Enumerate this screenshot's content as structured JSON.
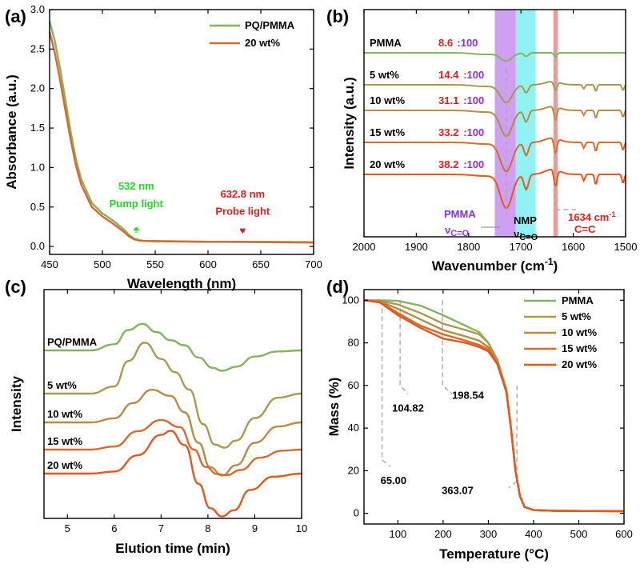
{
  "colors": {
    "green": "#86b360",
    "olive": "#a89a4e",
    "tan": "#b88b45",
    "orange": "#d96a2a",
    "deeporange": "#e8561c",
    "red": "#e02020",
    "purple": "#8a30e0",
    "bandPurple": "#c68ef0",
    "bandCyan": "#7ef0f0",
    "bandRed": "#f08a8a",
    "bright_green": "#22dd22"
  },
  "chart_data": [
    {
      "panel": "(a)",
      "type": "line",
      "xlabel": "Wavelength (nm)",
      "ylabel": "Absorbance (a.u.)",
      "xlim": [
        450,
        700
      ],
      "ylim": [
        -0.1,
        3.0
      ],
      "xticks": [
        450,
        500,
        550,
        600,
        650,
        700
      ],
      "yticks": [
        0.0,
        0.5,
        1.0,
        1.5,
        2.0,
        2.5,
        3.0
      ],
      "ytick_labels": [
        "0.0",
        "0.5",
        "1.0",
        "1.5",
        "2.0",
        "2.5",
        "3.0"
      ],
      "legend_position": "top-right",
      "series": [
        {
          "name": "PQ/PMMA",
          "color": "green",
          "x": [
            450,
            455,
            460,
            465,
            470,
            475,
            480,
            490,
            500,
            510,
            520,
            525,
            530,
            535,
            540,
            550,
            600,
            650,
            700
          ],
          "y": [
            2.85,
            2.6,
            2.25,
            1.85,
            1.45,
            1.1,
            0.85,
            0.55,
            0.42,
            0.33,
            0.22,
            0.15,
            0.1,
            0.08,
            0.07,
            0.07,
            0.06,
            0.06,
            0.055
          ]
        },
        {
          "name": "20 wt%",
          "color": "orange",
          "x": [
            450,
            455,
            460,
            465,
            470,
            475,
            480,
            490,
            500,
            510,
            520,
            525,
            530,
            535,
            540,
            550,
            600,
            650,
            700
          ],
          "y": [
            2.72,
            2.45,
            2.1,
            1.72,
            1.35,
            1.02,
            0.78,
            0.5,
            0.38,
            0.29,
            0.19,
            0.13,
            0.09,
            0.075,
            0.07,
            0.065,
            0.06,
            0.055,
            0.05
          ]
        }
      ],
      "annotations": [
        {
          "text": "532 nm",
          "color": "bright_green",
          "x": 532,
          "y": 0.72
        },
        {
          "text": "Pump light",
          "color": "bright_green",
          "x": 532,
          "y": 0.5
        },
        {
          "text": "♠",
          "color": "bright_green",
          "x": 532,
          "y": 0.18
        },
        {
          "text": "632.8 nm",
          "color": "red",
          "x": 632.8,
          "y": 0.62
        },
        {
          "text": "Probe light",
          "color": "red",
          "x": 632.8,
          "y": 0.4
        },
        {
          "text": "♥",
          "color": "red",
          "x": 632.8,
          "y": 0.16
        }
      ]
    },
    {
      "panel": "(b)",
      "type": "line",
      "xlabel": "Wavenumber (cm⁻¹)",
      "ylabel": "Intensity (a.u.)",
      "xlim": [
        2000,
        1500
      ],
      "xticks": [
        2000,
        1900,
        1800,
        1700,
        1600,
        1500
      ],
      "bands": [
        {
          "from": 1750,
          "to": 1710,
          "color": "bandPurple"
        },
        {
          "from": 1710,
          "to": 1672,
          "color": "bandCyan"
        },
        {
          "from": 1638,
          "to": 1630,
          "color": "bandRed"
        }
      ],
      "series": [
        {
          "name": "PMMA",
          "ratio_red": "8.6",
          "ratio_purple": ":100",
          "color": "green"
        },
        {
          "name": "5 wt%",
          "ratio_red": "14.4",
          "ratio_purple": ":100",
          "color": "olive"
        },
        {
          "name": "10 wt%",
          "ratio_red": "31.1",
          "ratio_purple": ":100",
          "color": "tan"
        },
        {
          "name": "15 wt%",
          "ratio_red": "33.2",
          "ratio_purple": ":100",
          "color": "orange"
        },
        {
          "name": "20 wt%",
          "ratio_red": "38.2",
          "ratio_purple": ":100",
          "color": "deeporange"
        }
      ],
      "annotations": {
        "pmma": "PMMA",
        "nu": "ν",
        "pmma_sub": "C=O",
        "nmp": "NMP",
        "nmp_sub": "C=O",
        "cc_value": "1634 cm",
        "cc_exp": "-1",
        "cc_label": "C=C"
      }
    },
    {
      "panel": "(c)",
      "type": "line",
      "xlabel": "Elution time (min)",
      "ylabel": "Intensity",
      "xlim": [
        4.5,
        10
      ],
      "xticks": [
        5,
        6,
        7,
        8,
        9,
        10
      ],
      "series": [
        {
          "name": "PQ/PMMA",
          "color": "green",
          "offset": 4.4,
          "x": [
            4.5,
            5.5,
            6.0,
            6.3,
            6.6,
            6.9,
            7.2,
            7.5,
            7.8,
            8.1,
            8.3,
            8.6,
            9.0,
            9.5,
            10.0
          ],
          "y": [
            0.0,
            0.0,
            0.3,
            1.0,
            1.3,
            0.9,
            0.5,
            0.25,
            -0.35,
            -0.85,
            -1.0,
            -0.8,
            -0.3,
            -0.05,
            0.0
          ]
        },
        {
          "name": "5 wt%",
          "color": "olive",
          "offset": 3.0,
          "x": [
            4.5,
            5.5,
            6.0,
            6.3,
            6.65,
            7.0,
            7.3,
            7.6,
            7.9,
            8.15,
            8.35,
            8.6,
            9.0,
            9.5,
            10.0
          ],
          "y": [
            0.0,
            0.0,
            0.35,
            1.6,
            2.5,
            1.7,
            1.05,
            0.2,
            -1.5,
            -2.5,
            -2.65,
            -2.3,
            -1.2,
            -0.2,
            0.0
          ]
        },
        {
          "name": "10 wt%",
          "color": "tan",
          "offset": 1.95,
          "x": [
            4.5,
            5.5,
            6.0,
            6.4,
            6.8,
            7.2,
            7.5,
            7.8,
            8.05,
            8.3,
            8.6,
            9.0,
            9.5,
            10.0
          ],
          "y": [
            0.0,
            0.0,
            0.2,
            0.95,
            1.6,
            1.3,
            0.5,
            -1.0,
            -2.2,
            -2.6,
            -2.1,
            -1.0,
            -0.2,
            0.0
          ]
        },
        {
          "name": "15 wt%",
          "color": "orange",
          "offset": 1.15,
          "x": [
            4.5,
            5.5,
            6.0,
            6.5,
            7.0,
            7.4,
            7.7,
            7.95,
            8.2,
            8.4,
            8.7,
            9.1,
            9.6,
            10.0
          ],
          "y": [
            0.0,
            0.0,
            0.15,
            0.9,
            1.45,
            1.1,
            0.0,
            -0.85,
            -1.2,
            -1.25,
            -1.0,
            -0.4,
            -0.05,
            0.0
          ]
        },
        {
          "name": "20 wt%",
          "color": "deeporange",
          "offset": 0.3,
          "x": [
            4.5,
            5.5,
            6.0,
            6.5,
            7.0,
            7.2,
            7.5,
            7.8,
            8.05,
            8.3,
            8.55,
            8.9,
            9.4,
            10.0
          ],
          "y": [
            0.0,
            0.0,
            0.1,
            0.9,
            1.9,
            2.1,
            1.4,
            -0.5,
            -1.7,
            -2.1,
            -1.8,
            -0.8,
            -0.15,
            0.0
          ]
        }
      ]
    },
    {
      "panel": "(d)",
      "type": "line",
      "xlabel": "Temperature (°C)",
      "ylabel": "Mass (%)",
      "xlim": [
        25,
        600
      ],
      "ylim": [
        -5,
        105
      ],
      "xticks": [
        100,
        200,
        300,
        400,
        500,
        600
      ],
      "yticks": [
        0,
        20,
        40,
        60,
        80,
        100
      ],
      "legend_position": "top-right",
      "series": [
        {
          "name": "PMMA",
          "color": "green",
          "x": [
            25,
            60,
            100,
            150,
            200,
            250,
            280,
            300,
            320,
            340,
            350,
            360,
            370,
            380,
            400,
            450,
            600
          ],
          "y": [
            100,
            100,
            99.7,
            97.5,
            93,
            88,
            85,
            80,
            72,
            58,
            40,
            20,
            8,
            3,
            1.5,
            1.2,
            1.0
          ]
        },
        {
          "name": "5 wt%",
          "color": "olive",
          "x": [
            25,
            60,
            100,
            150,
            200,
            250,
            280,
            300,
            320,
            340,
            350,
            360,
            370,
            380,
            400,
            450,
            600
          ],
          "y": [
            100,
            99.8,
            98,
            94,
            89,
            86,
            84,
            80,
            72,
            58,
            40,
            20,
            8,
            3,
            1.5,
            1.2,
            1.0
          ]
        },
        {
          "name": "10 wt%",
          "color": "tan",
          "x": [
            25,
            60,
            100,
            150,
            200,
            250,
            280,
            300,
            320,
            340,
            350,
            360,
            370,
            380,
            400,
            450,
            600
          ],
          "y": [
            100,
            99.5,
            96,
            91,
            86,
            83,
            81,
            78,
            71,
            57,
            40,
            20,
            8,
            3,
            1.5,
            1.2,
            1.0
          ]
        },
        {
          "name": "15 wt%",
          "color": "orange",
          "x": [
            25,
            60,
            100,
            150,
            200,
            250,
            280,
            300,
            320,
            340,
            350,
            360,
            370,
            380,
            400,
            450,
            600
          ],
          "y": [
            100,
            99.2,
            94,
            88,
            84,
            81,
            79,
            77,
            70,
            57,
            40,
            20,
            8,
            3,
            1.5,
            1.2,
            1.0
          ]
        },
        {
          "name": "20 wt%",
          "color": "deeporange",
          "x": [
            25,
            60,
            100,
            150,
            200,
            250,
            280,
            300,
            320,
            340,
            350,
            360,
            370,
            380,
            400,
            450,
            600
          ],
          "y": [
            100,
            99.0,
            93,
            87,
            82,
            80,
            78,
            76,
            70,
            57,
            40,
            20,
            8,
            3,
            1.5,
            1.2,
            1.0
          ]
        }
      ],
      "annotations": [
        "65.00",
        "104.82",
        "198.54",
        "363.07"
      ]
    }
  ]
}
